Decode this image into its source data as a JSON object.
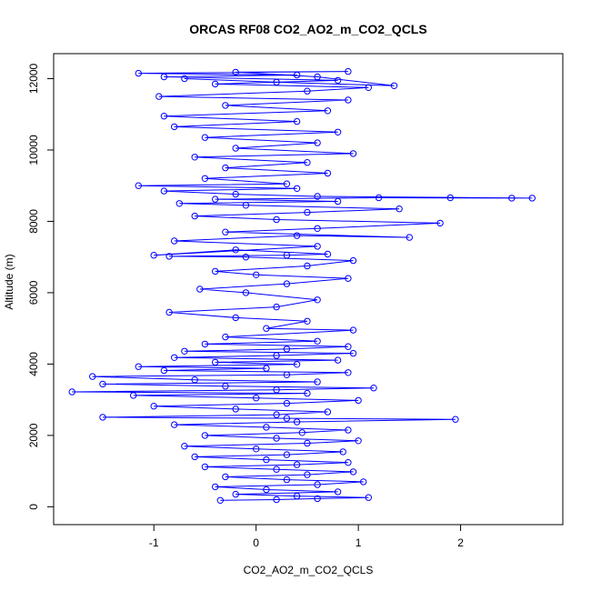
{
  "chart_data": {
    "type": "scatter",
    "title": "ORCAS RF08 CO2_AO2_m_CO2_QCLS",
    "xlabel": "CO2_AO2_m_CO2_QCLS",
    "ylabel": "Altitude (m)",
    "xlim": [
      -1.98,
      3.0
    ],
    "ylim": [
      -500,
      12700
    ],
    "xticks": [
      -1,
      0,
      1,
      2
    ],
    "yticks": [
      0,
      2000,
      4000,
      6000,
      8000,
      10000,
      12000
    ],
    "grid": false,
    "legend": "none",
    "marker": "open-circle",
    "connected": true,
    "color": "#0000ff",
    "series": [
      {
        "points": [
          [
            -0.35,
            180
          ],
          [
            0.2,
            200
          ],
          [
            0.6,
            230
          ],
          [
            1.1,
            260
          ],
          [
            0.4,
            300
          ],
          [
            -0.2,
            350
          ],
          [
            0.8,
            420
          ],
          [
            0.1,
            480
          ],
          [
            -0.4,
            560
          ],
          [
            0.6,
            620
          ],
          [
            1.05,
            700
          ],
          [
            0.3,
            760
          ],
          [
            -0.3,
            840
          ],
          [
            0.5,
            900
          ],
          [
            0.95,
            980
          ],
          [
            0.2,
            1050
          ],
          [
            -0.5,
            1120
          ],
          [
            0.4,
            1180
          ],
          [
            0.9,
            1240
          ],
          [
            0.1,
            1320
          ],
          [
            -0.6,
            1400
          ],
          [
            0.3,
            1460
          ],
          [
            0.85,
            1540
          ],
          [
            0.0,
            1620
          ],
          [
            -0.7,
            1700
          ],
          [
            0.5,
            1780
          ],
          [
            1.0,
            1850
          ],
          [
            0.2,
            1920
          ],
          [
            -0.5,
            2000
          ],
          [
            0.45,
            2080
          ],
          [
            0.9,
            2150
          ],
          [
            0.1,
            2230
          ],
          [
            -0.8,
            2300
          ],
          [
            0.4,
            2380
          ],
          [
            1.95,
            2450
          ],
          [
            0.3,
            2480
          ],
          [
            -1.5,
            2510
          ],
          [
            0.2,
            2580
          ],
          [
            0.7,
            2660
          ],
          [
            -0.2,
            2740
          ],
          [
            -1.0,
            2820
          ],
          [
            0.3,
            2900
          ],
          [
            1.0,
            2980
          ],
          [
            0.0,
            3050
          ],
          [
            -1.2,
            3120
          ],
          [
            0.5,
            3180
          ],
          [
            -1.8,
            3220
          ],
          [
            0.2,
            3280
          ],
          [
            1.15,
            3330
          ],
          [
            -0.3,
            3380
          ],
          [
            -1.5,
            3440
          ],
          [
            0.6,
            3500
          ],
          [
            -0.6,
            3560
          ],
          [
            -1.6,
            3650
          ],
          [
            0.3,
            3700
          ],
          [
            0.9,
            3760
          ],
          [
            -0.9,
            3820
          ],
          [
            0.1,
            3880
          ],
          [
            -1.15,
            3930
          ],
          [
            0.4,
            3990
          ],
          [
            -0.4,
            4050
          ],
          [
            0.8,
            4110
          ],
          [
            -0.8,
            4180
          ],
          [
            0.2,
            4240
          ],
          [
            0.95,
            4300
          ],
          [
            -0.7,
            4360
          ],
          [
            0.3,
            4420
          ],
          [
            0.9,
            4490
          ],
          [
            -0.5,
            4560
          ],
          [
            0.6,
            4640
          ],
          [
            -0.3,
            4760
          ],
          [
            0.95,
            4950
          ],
          [
            0.1,
            5000
          ],
          [
            0.5,
            5200
          ],
          [
            -0.2,
            5300
          ],
          [
            -0.85,
            5450
          ],
          [
            0.2,
            5600
          ],
          [
            0.6,
            5800
          ],
          [
            -0.1,
            6000
          ],
          [
            -0.55,
            6100
          ],
          [
            0.3,
            6250
          ],
          [
            0.9,
            6400
          ],
          [
            0.0,
            6500
          ],
          [
            -0.4,
            6600
          ],
          [
            0.5,
            6750
          ],
          [
            0.95,
            6900
          ],
          [
            -0.1,
            7000
          ],
          [
            -0.85,
            7020
          ],
          [
            0.3,
            7050
          ],
          [
            0.7,
            7080
          ],
          [
            -0.2,
            7200
          ],
          [
            -1.0,
            7050
          ],
          [
            0.6,
            7300
          ],
          [
            -0.8,
            7450
          ],
          [
            0.4,
            7600
          ],
          [
            1.5,
            7550
          ],
          [
            -0.3,
            7700
          ],
          [
            0.6,
            7800
          ],
          [
            1.8,
            7950
          ],
          [
            0.2,
            8050
          ],
          [
            -0.6,
            8150
          ],
          [
            0.5,
            8250
          ],
          [
            1.4,
            8350
          ],
          [
            -0.1,
            8450
          ],
          [
            -0.75,
            8500
          ],
          [
            0.8,
            8560
          ],
          [
            -0.4,
            8620
          ],
          [
            1.2,
            8660
          ],
          [
            2.5,
            8650
          ],
          [
            1.9,
            8660
          ],
          [
            2.7,
            8650
          ],
          [
            0.6,
            8700
          ],
          [
            -0.2,
            8760
          ],
          [
            -0.9,
            8850
          ],
          [
            0.4,
            8920
          ],
          [
            -1.15,
            9000
          ],
          [
            0.3,
            9050
          ],
          [
            -0.5,
            9200
          ],
          [
            0.7,
            9350
          ],
          [
            -0.3,
            9500
          ],
          [
            0.5,
            9650
          ],
          [
            -0.6,
            9800
          ],
          [
            0.95,
            9900
          ],
          [
            -0.2,
            10050
          ],
          [
            0.6,
            10200
          ],
          [
            -0.5,
            10350
          ],
          [
            0.8,
            10500
          ],
          [
            -0.8,
            10650
          ],
          [
            0.4,
            10800
          ],
          [
            -0.9,
            10950
          ],
          [
            0.7,
            11100
          ],
          [
            -0.3,
            11250
          ],
          [
            0.9,
            11400
          ],
          [
            -0.95,
            11500
          ],
          [
            0.5,
            11650
          ],
          [
            1.1,
            11750
          ],
          [
            -0.4,
            11850
          ],
          [
            0.8,
            11950
          ],
          [
            -0.9,
            12050
          ],
          [
            0.4,
            12100
          ],
          [
            -1.15,
            12150
          ],
          [
            0.9,
            12200
          ],
          [
            -0.2,
            12180
          ],
          [
            0.6,
            12050
          ],
          [
            1.35,
            11800
          ],
          [
            0.2,
            11900
          ],
          [
            -0.7,
            12000
          ]
        ]
      }
    ]
  }
}
